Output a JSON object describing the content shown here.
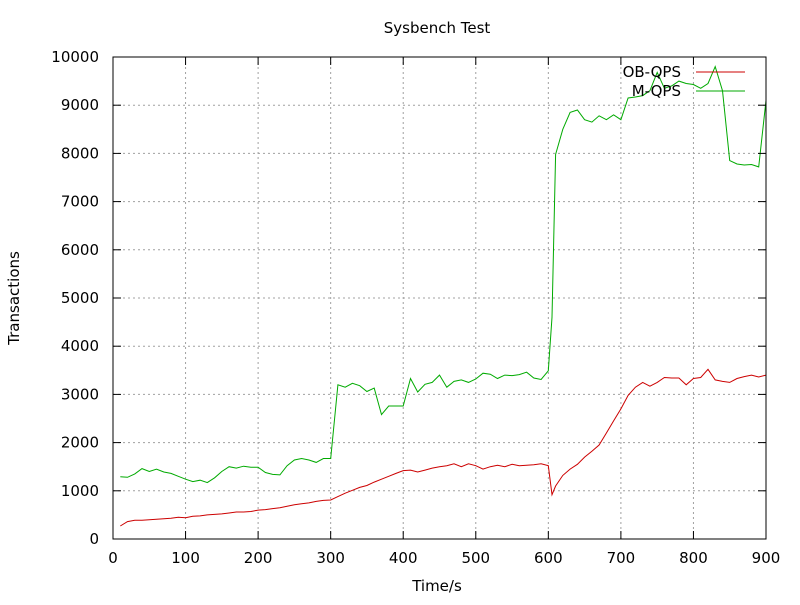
{
  "chart_data": {
    "type": "line",
    "title": "Sysbench Test",
    "xlabel": "Time/s",
    "ylabel": "Transactions",
    "xlim": [
      0,
      900
    ],
    "ylim": [
      0,
      10000
    ],
    "x_ticks": [
      "0",
      "100",
      "200",
      "300",
      "400",
      "500",
      "600",
      "700",
      "800",
      "900"
    ],
    "y_ticks": [
      "0",
      "1000",
      "2000",
      "3000",
      "4000",
      "5000",
      "6000",
      "7000",
      "8000",
      "9000",
      "10000"
    ],
    "grid": true,
    "legend": "top-right",
    "series": [
      {
        "name": "OB-QPS",
        "color": "#cc0000",
        "points": [
          [
            10,
            270
          ],
          [
            20,
            360
          ],
          [
            30,
            390
          ],
          [
            40,
            390
          ],
          [
            50,
            400
          ],
          [
            60,
            410
          ],
          [
            70,
            420
          ],
          [
            80,
            430
          ],
          [
            90,
            450
          ],
          [
            100,
            440
          ],
          [
            110,
            470
          ],
          [
            120,
            480
          ],
          [
            130,
            500
          ],
          [
            140,
            510
          ],
          [
            150,
            520
          ],
          [
            160,
            540
          ],
          [
            170,
            560
          ],
          [
            180,
            560
          ],
          [
            190,
            570
          ],
          [
            200,
            600
          ],
          [
            210,
            610
          ],
          [
            220,
            630
          ],
          [
            230,
            650
          ],
          [
            240,
            680
          ],
          [
            250,
            710
          ],
          [
            260,
            730
          ],
          [
            270,
            750
          ],
          [
            280,
            780
          ],
          [
            290,
            800
          ],
          [
            300,
            810
          ],
          [
            310,
            880
          ],
          [
            320,
            950
          ],
          [
            330,
            1010
          ],
          [
            340,
            1070
          ],
          [
            350,
            1110
          ],
          [
            360,
            1180
          ],
          [
            370,
            1240
          ],
          [
            380,
            1300
          ],
          [
            390,
            1360
          ],
          [
            400,
            1420
          ],
          [
            410,
            1430
          ],
          [
            420,
            1390
          ],
          [
            430,
            1430
          ],
          [
            440,
            1470
          ],
          [
            450,
            1500
          ],
          [
            460,
            1520
          ],
          [
            470,
            1560
          ],
          [
            480,
            1500
          ],
          [
            490,
            1560
          ],
          [
            500,
            1520
          ],
          [
            510,
            1450
          ],
          [
            520,
            1500
          ],
          [
            530,
            1530
          ],
          [
            540,
            1500
          ],
          [
            550,
            1550
          ],
          [
            560,
            1520
          ],
          [
            570,
            1530
          ],
          [
            580,
            1540
          ],
          [
            590,
            1560
          ],
          [
            600,
            1520
          ],
          [
            605,
            920
          ],
          [
            610,
            1100
          ],
          [
            620,
            1320
          ],
          [
            630,
            1450
          ],
          [
            640,
            1550
          ],
          [
            650,
            1700
          ],
          [
            660,
            1820
          ],
          [
            670,
            1950
          ],
          [
            680,
            2200
          ],
          [
            690,
            2450
          ],
          [
            700,
            2700
          ],
          [
            710,
            2980
          ],
          [
            720,
            3150
          ],
          [
            730,
            3250
          ],
          [
            740,
            3170
          ],
          [
            750,
            3250
          ],
          [
            760,
            3350
          ],
          [
            770,
            3340
          ],
          [
            780,
            3340
          ],
          [
            790,
            3200
          ],
          [
            800,
            3330
          ],
          [
            810,
            3350
          ],
          [
            820,
            3520
          ],
          [
            830,
            3300
          ],
          [
            840,
            3270
          ],
          [
            850,
            3250
          ],
          [
            860,
            3330
          ],
          [
            870,
            3370
          ],
          [
            880,
            3400
          ],
          [
            890,
            3360
          ],
          [
            900,
            3400
          ]
        ]
      },
      {
        "name": "M-QPS",
        "color": "#00aa00",
        "points": [
          [
            10,
            1290
          ],
          [
            20,
            1280
          ],
          [
            30,
            1350
          ],
          [
            40,
            1460
          ],
          [
            50,
            1400
          ],
          [
            60,
            1450
          ],
          [
            70,
            1390
          ],
          [
            80,
            1360
          ],
          [
            90,
            1300
          ],
          [
            100,
            1240
          ],
          [
            110,
            1190
          ],
          [
            120,
            1220
          ],
          [
            130,
            1170
          ],
          [
            140,
            1270
          ],
          [
            150,
            1400
          ],
          [
            160,
            1500
          ],
          [
            170,
            1470
          ],
          [
            180,
            1510
          ],
          [
            190,
            1490
          ],
          [
            200,
            1490
          ],
          [
            210,
            1380
          ],
          [
            220,
            1340
          ],
          [
            230,
            1330
          ],
          [
            240,
            1520
          ],
          [
            250,
            1640
          ],
          [
            260,
            1670
          ],
          [
            270,
            1640
          ],
          [
            280,
            1590
          ],
          [
            290,
            1670
          ],
          [
            300,
            1670
          ],
          [
            310,
            3200
          ],
          [
            320,
            3150
          ],
          [
            330,
            3230
          ],
          [
            340,
            3180
          ],
          [
            350,
            3060
          ],
          [
            360,
            3130
          ],
          [
            370,
            2580
          ],
          [
            380,
            2760
          ],
          [
            390,
            2760
          ],
          [
            400,
            2760
          ],
          [
            410,
            3330
          ],
          [
            420,
            3050
          ],
          [
            430,
            3210
          ],
          [
            440,
            3250
          ],
          [
            450,
            3400
          ],
          [
            460,
            3150
          ],
          [
            470,
            3270
          ],
          [
            480,
            3300
          ],
          [
            490,
            3250
          ],
          [
            500,
            3320
          ],
          [
            510,
            3440
          ],
          [
            520,
            3420
          ],
          [
            530,
            3330
          ],
          [
            540,
            3400
          ],
          [
            550,
            3390
          ],
          [
            560,
            3410
          ],
          [
            570,
            3460
          ],
          [
            580,
            3340
          ],
          [
            590,
            3310
          ],
          [
            600,
            3490
          ],
          [
            605,
            4600
          ],
          [
            610,
            7980
          ],
          [
            620,
            8500
          ],
          [
            630,
            8850
          ],
          [
            640,
            8900
          ],
          [
            650,
            8700
          ],
          [
            660,
            8650
          ],
          [
            670,
            8780
          ],
          [
            680,
            8700
          ],
          [
            690,
            8800
          ],
          [
            700,
            8700
          ],
          [
            710,
            9150
          ],
          [
            720,
            9170
          ],
          [
            730,
            9200
          ],
          [
            740,
            9300
          ],
          [
            750,
            9680
          ],
          [
            760,
            9350
          ],
          [
            770,
            9400
          ],
          [
            780,
            9500
          ],
          [
            790,
            9450
          ],
          [
            800,
            9430
          ],
          [
            810,
            9350
          ],
          [
            820,
            9450
          ],
          [
            830,
            9800
          ],
          [
            840,
            9300
          ],
          [
            850,
            7850
          ],
          [
            860,
            7780
          ],
          [
            870,
            7760
          ],
          [
            880,
            7770
          ],
          [
            890,
            7720
          ],
          [
            900,
            9100
          ]
        ]
      }
    ]
  }
}
